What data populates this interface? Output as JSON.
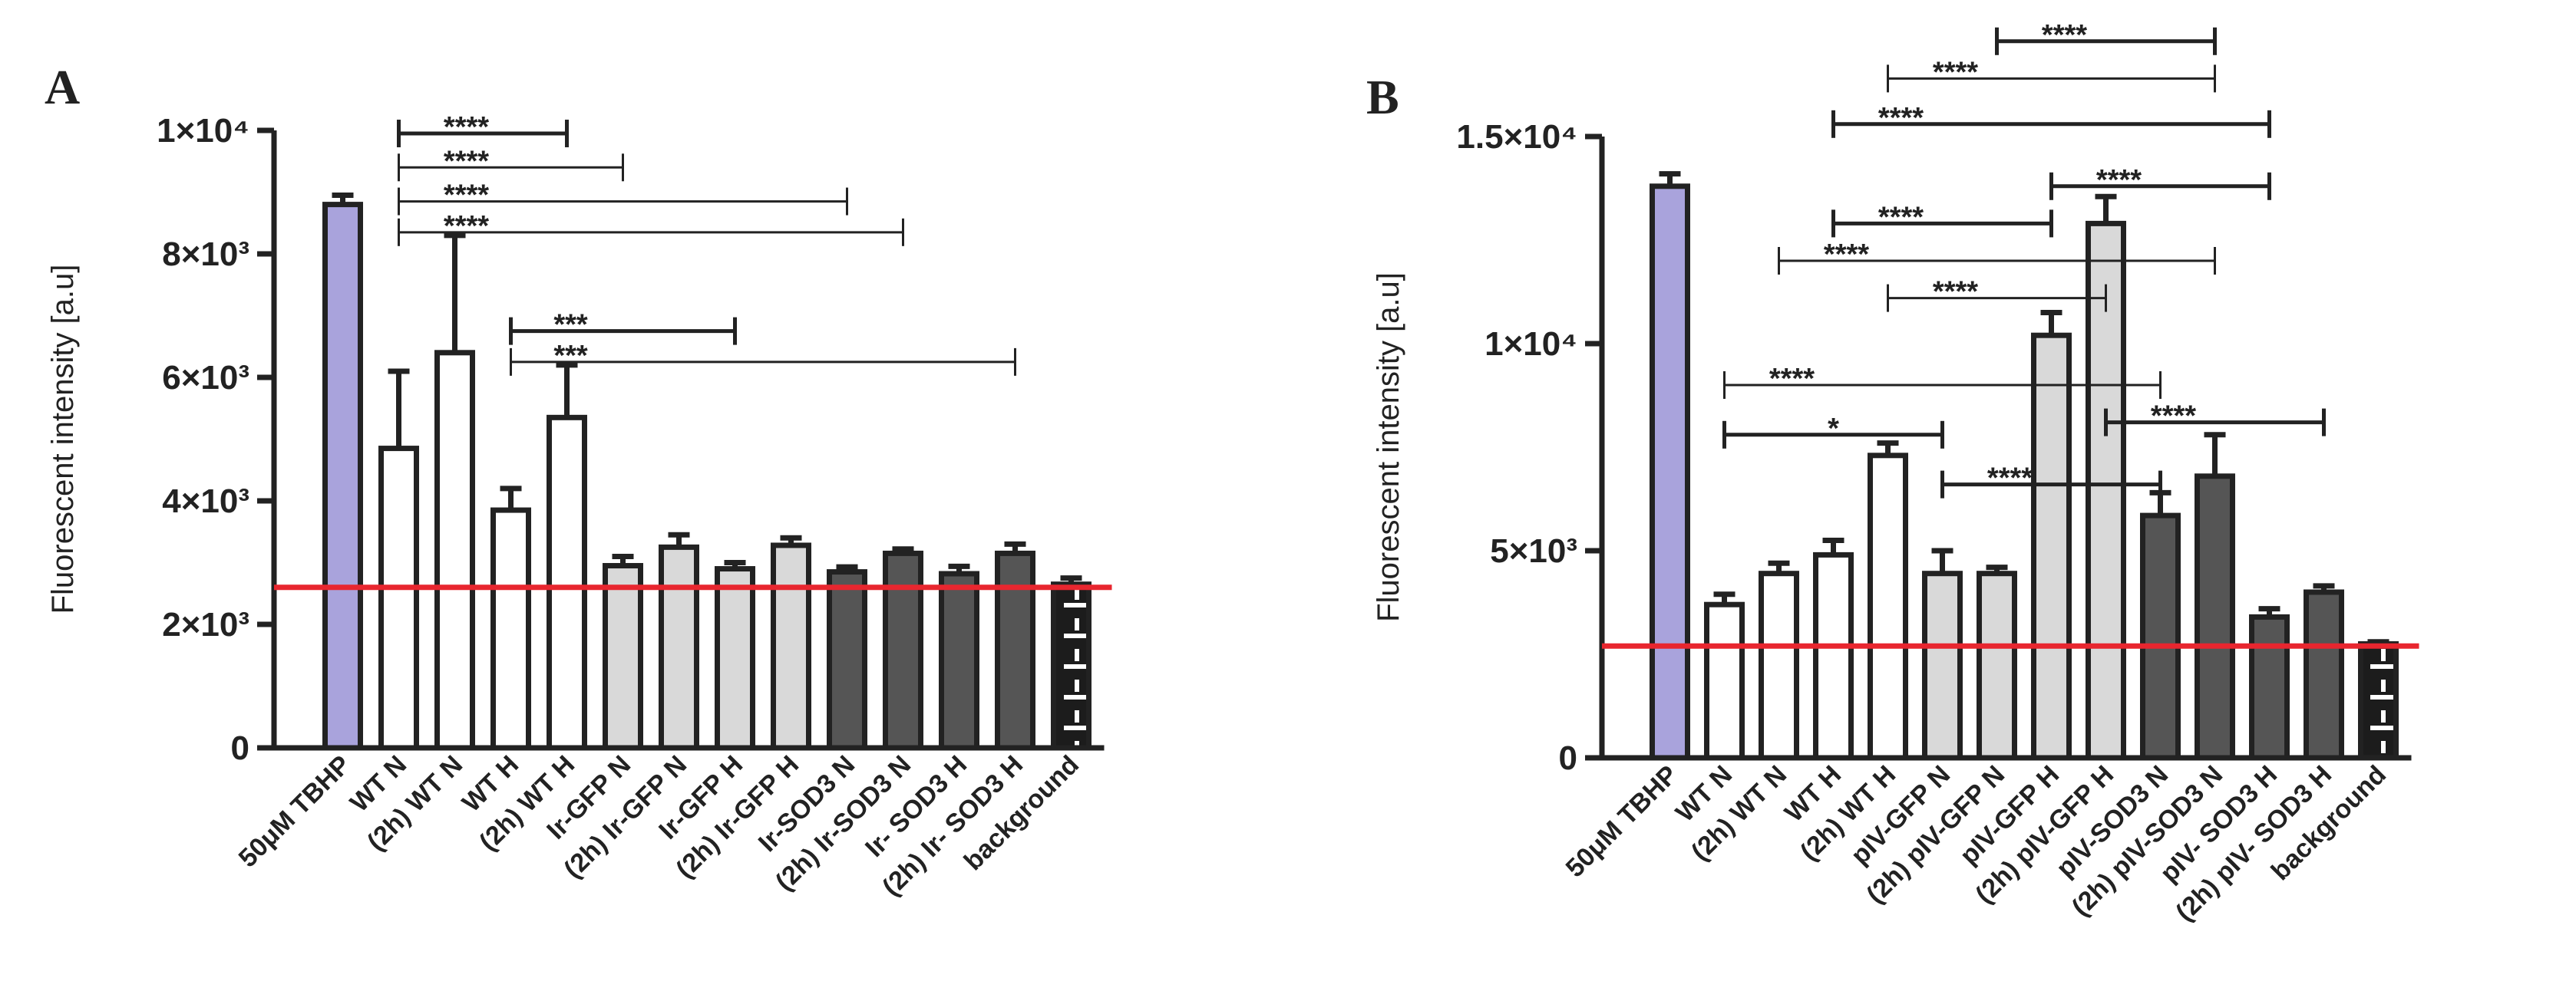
{
  "colors": {
    "tbhp": "#a9a3dc",
    "wt": "#ffffff",
    "gfp": "#d9d9d9",
    "sod3": "#555555",
    "background": "#1c1c1c",
    "baseline": "#e8262f",
    "ink": "#222222"
  },
  "chart_data": [
    {
      "panel": "A",
      "type": "bar",
      "ylabel": "Fluorescent intensity [a.u]",
      "ylim": [
        0,
        10000
      ],
      "yticks": [
        {
          "value": 0,
          "label": "0"
        },
        {
          "value": 2000,
          "label": "2×10³"
        },
        {
          "value": 4000,
          "label": "4×10³"
        },
        {
          "value": 6000,
          "label": "6×10³"
        },
        {
          "value": 8000,
          "label": "8×10³"
        },
        {
          "value": 10000,
          "label": "1×10⁴"
        }
      ],
      "categories": [
        "50μM TBHP",
        "WT N",
        "(2h) WT N",
        "WT H",
        "(2h) WT H",
        "Ir-GFP N",
        "(2h) Ir-GFP N",
        "Ir-GFP H",
        "(2h) Ir-GFP H",
        "Ir-SOD3 N",
        "(2h) Ir-SOD3 N",
        "Ir- SOD3 H",
        "(2h) Ir- SOD3 H",
        "background"
      ],
      "values": [
        8800,
        4850,
        6400,
        3850,
        5350,
        2950,
        3250,
        2900,
        3280,
        2850,
        3150,
        2820,
        3150,
        2650
      ],
      "errors": [
        150,
        1250,
        1900,
        350,
        850,
        150,
        200,
        100,
        120,
        80,
        70,
        120,
        150,
        100
      ],
      "groups": [
        "tbhp",
        "wt",
        "wt",
        "wt",
        "wt",
        "gfp",
        "gfp",
        "gfp",
        "gfp",
        "sod3",
        "sod3",
        "sod3",
        "sod3",
        "background"
      ],
      "baseline_value": 2600,
      "comparisons": [
        {
          "from": 1,
          "to": 4,
          "label": "****",
          "y": 9950,
          "bold": true
        },
        {
          "from": 1,
          "to": 5,
          "label": "****",
          "y": 9400,
          "bold": false
        },
        {
          "from": 1,
          "to": 9,
          "label": "****",
          "y": 8850,
          "bold": false
        },
        {
          "from": 1,
          "to": 10,
          "label": "****",
          "y": 8350,
          "bold": false
        },
        {
          "from": 3,
          "to": 7,
          "label": "***",
          "y": 6750,
          "bold": true
        },
        {
          "from": 3,
          "to": 12,
          "label": "***",
          "y": 6250,
          "bold": false
        }
      ]
    },
    {
      "panel": "B",
      "type": "bar",
      "ylabel": "Fluorescent intensity [a.u]",
      "ylim": [
        0,
        15000
      ],
      "yticks": [
        {
          "value": 0,
          "label": "0"
        },
        {
          "value": 5000,
          "label": "5×10³"
        },
        {
          "value": 10000,
          "label": "1×10⁴"
        },
        {
          "value": 15000,
          "label": "1.5×10⁴"
        }
      ],
      "categories": [
        "50μM TBHP",
        "WT N",
        "(2h) WT N",
        "WT H",
        "(2h) WT H",
        "pIV-GFP N",
        "(2h) pIV-GFP N",
        "pIV-GFP H",
        "(2h) pIV-GFP H",
        "pIV-SOD3 N",
        "(2h) pIV-SOD3 N",
        "pIV- SOD3 H",
        "(2h) pIV- SOD3 H",
        "background"
      ],
      "values": [
        13800,
        3700,
        4450,
        4900,
        7300,
        4450,
        4450,
        10200,
        12900,
        5850,
        6800,
        3400,
        4000,
        2750
      ],
      "errors": [
        300,
        250,
        250,
        350,
        300,
        550,
        150,
        550,
        650,
        550,
        1000,
        200,
        150,
        50
      ],
      "groups": [
        "tbhp",
        "wt",
        "wt",
        "wt",
        "wt",
        "gfp",
        "gfp",
        "gfp",
        "gfp",
        "sod3",
        "sod3",
        "sod3",
        "sod3",
        "background"
      ],
      "baseline_value": 2700,
      "comparisons": [
        {
          "from": 6,
          "to": 10,
          "label": "****",
          "y": 17300,
          "bold": true
        },
        {
          "from": 4,
          "to": 10,
          "label": "****",
          "y": 16400,
          "bold": false
        },
        {
          "from": 3,
          "to": 11,
          "label": "****",
          "y": 15300,
          "bold": true
        },
        {
          "from": 7,
          "to": 11,
          "label": "****",
          "y": 13800,
          "bold": true
        },
        {
          "from": 3,
          "to": 7,
          "label": "****",
          "y": 12900,
          "bold": true
        },
        {
          "from": 2,
          "to": 10,
          "label": "****",
          "y": 12000,
          "bold": false
        },
        {
          "from": 4,
          "to": 8,
          "label": "****",
          "y": 11100,
          "bold": false
        },
        {
          "from": 1,
          "to": 9,
          "label": "****",
          "y": 9000,
          "bold": false
        },
        {
          "from": 1,
          "to": 5,
          "label": "*",
          "y": 7800,
          "bold": true
        },
        {
          "from": 8,
          "to": 12,
          "label": "****",
          "y": 8100,
          "bold": true
        },
        {
          "from": 5,
          "to": 9,
          "label": "****",
          "y": 6600,
          "bold": true
        }
      ]
    }
  ]
}
